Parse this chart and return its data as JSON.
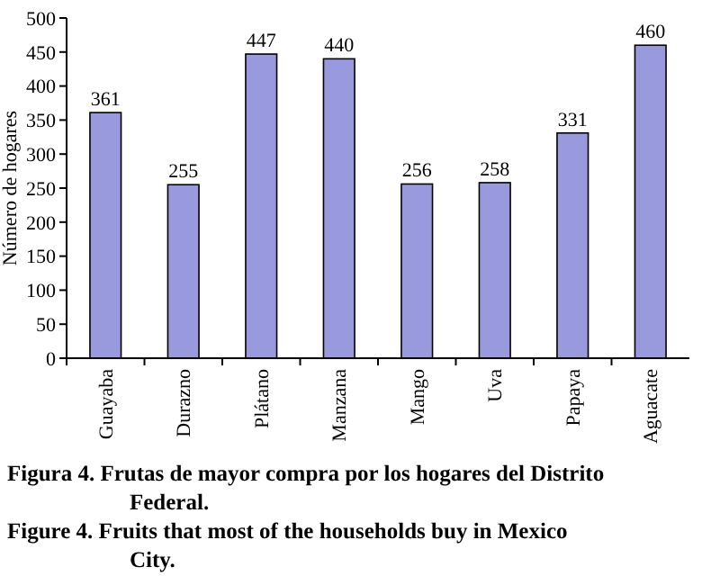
{
  "chart_data": {
    "type": "bar",
    "ylabel": "Número de hogares",
    "categories": [
      "Guayaba",
      "Durazno",
      "Plátano",
      "Manzana",
      "Mango",
      "Uva",
      "Papaya",
      "Aguacate"
    ],
    "values": [
      361,
      255,
      447,
      440,
      256,
      258,
      331,
      460
    ],
    "color": "#9999dd",
    "data_labels": true,
    "grid": false,
    "ylim": [
      0,
      500
    ],
    "yticks": [
      0,
      50,
      100,
      150,
      200,
      250,
      300,
      350,
      400,
      450,
      500
    ],
    "annotations": [
      "Figura 4. Frutas de mayor compra por los hogares del Distrito Federal.",
      "Figure 4. Fruits that most of the households buy in Mexico City."
    ]
  }
}
